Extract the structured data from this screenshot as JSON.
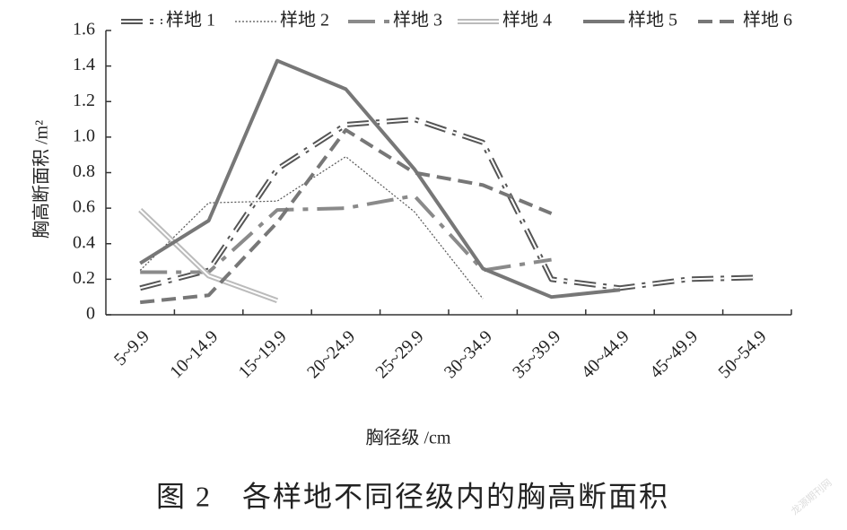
{
  "chart_data": {
    "type": "line",
    "y_label": "胸高断面积 /m²",
    "x_label": "胸径级 /cm",
    "caption": "图 2　各样地不同径级内的胸高断面积",
    "watermark": "龙源期刊网",
    "categories": [
      "5~9.9",
      "10~14.9",
      "15~19.9",
      "20~24.9",
      "25~29.9",
      "30~34.9",
      "35~39.9",
      "40~44.9",
      "45~49.9",
      "50~54.9"
    ],
    "series": [
      {
        "name": "样地 1",
        "color": "#555555",
        "style": "double-dashdot",
        "values": [
          0.15,
          0.25,
          0.82,
          1.07,
          1.1,
          0.97,
          0.2,
          0.15,
          0.2,
          0.21
        ]
      },
      {
        "name": "样地 2",
        "color": "#555555",
        "style": "dotted",
        "values": [
          0.25,
          0.63,
          0.64,
          0.89,
          0.58,
          0.09,
          null,
          null,
          null,
          null
        ]
      },
      {
        "name": "样地 3",
        "color": "#8a8a8a",
        "style": "longdash",
        "values": [
          0.24,
          0.24,
          0.59,
          0.6,
          0.67,
          0.25,
          0.31,
          null,
          null,
          null
        ]
      },
      {
        "name": "样地 4",
        "color": "#bbbbbb",
        "style": "double",
        "values": [
          0.59,
          0.22,
          0.08,
          null,
          null,
          null,
          null,
          null,
          null,
          null
        ]
      },
      {
        "name": "样地 5",
        "color": "#777777",
        "style": "solid",
        "values": [
          0.29,
          0.53,
          1.43,
          1.27,
          0.82,
          0.26,
          0.1,
          0.14,
          null,
          null
        ]
      },
      {
        "name": "样地 6",
        "color": "#777777",
        "style": "dashed",
        "values": [
          0.07,
          0.11,
          0.52,
          1.04,
          0.8,
          0.73,
          0.57,
          null,
          null,
          null
        ]
      }
    ],
    "ylim": [
      0,
      1.6
    ],
    "yticks": [
      0,
      0.2,
      0.4,
      0.6,
      0.8,
      {
        "value": 1,
        "label": "1.0"
      },
      1.2,
      1.4,
      1.6
    ],
    "grid": false
  }
}
